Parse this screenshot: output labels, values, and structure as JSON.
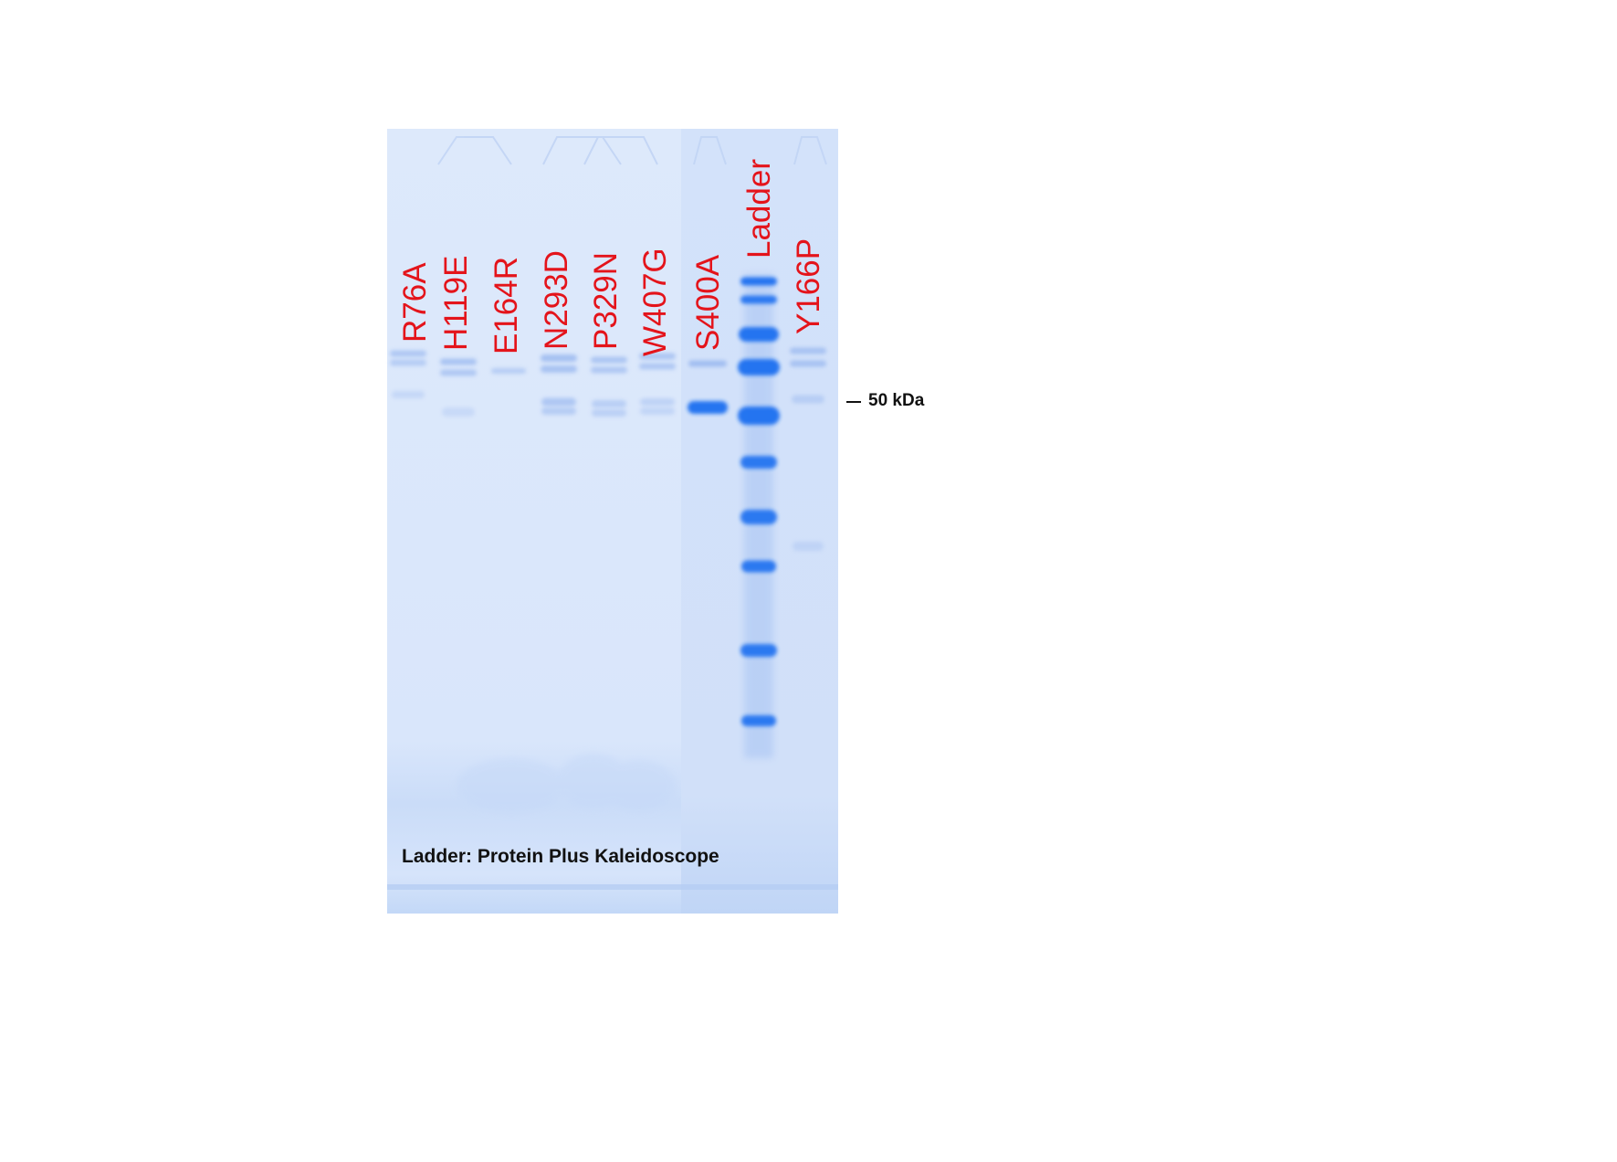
{
  "gel": {
    "lanes": [
      {
        "id": "lane-r76a",
        "label": "R76A"
      },
      {
        "id": "lane-h119e",
        "label": "H119E"
      },
      {
        "id": "lane-e164r",
        "label": "E164R"
      },
      {
        "id": "lane-n293d",
        "label": "N293D"
      },
      {
        "id": "lane-p329n",
        "label": "P329N"
      },
      {
        "id": "lane-w407g",
        "label": "W407G"
      },
      {
        "id": "lane-s400a",
        "label": "S400A"
      },
      {
        "id": "lane-ladder",
        "label": "Ladder"
      },
      {
        "id": "lane-y166p",
        "label": "Y166P"
      }
    ],
    "marker": {
      "label": "50 kDa"
    },
    "caption": "Ladder: Protein Plus Kaleidoscope"
  },
  "colors": {
    "gel_background": "#dde9fb",
    "gel_background_right_panel": "#d5e3fa",
    "band_strong": "#1f6ff0",
    "band_faint": "#9cbaf0",
    "label_text": "#e4141b",
    "annotation_text": "#111111"
  }
}
